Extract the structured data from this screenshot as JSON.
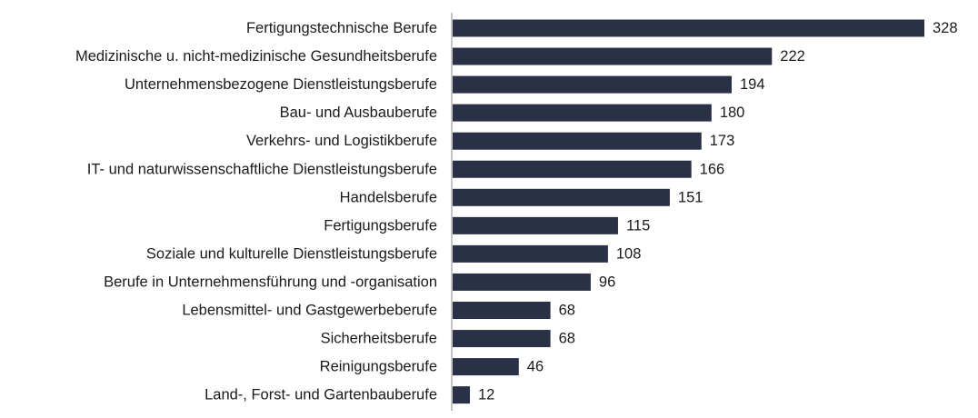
{
  "chart_data": {
    "type": "bar",
    "orientation": "horizontal",
    "title": "",
    "xlabel": "",
    "ylabel": "",
    "categories": [
      "Fertigungstechnische Berufe",
      "Medizinische u. nicht-medizinische Gesundheitsberufe",
      "Unternehmensbezogene Dienstleistungsberufe",
      "Bau- und Ausbauberufe",
      "Verkehrs- und Logistikberufe",
      "IT- und naturwissenschaftliche Dienstleistungsberufe",
      "Handelsberufe",
      "Fertigungsberufe",
      "Soziale und kulturelle Dienstleistungsberufe",
      "Berufe in Unternehmensführung und -organisation",
      "Lebensmittel- und Gastgewerbeberufe",
      "Sicherheitsberufe",
      "Reinigungsberufe",
      "Land-, Forst- und Gartenbauberufe"
    ],
    "values": [
      328,
      222,
      194,
      180,
      173,
      166,
      151,
      115,
      108,
      96,
      68,
      68,
      46,
      12
    ],
    "xlim": [
      0,
      328
    ],
    "grid": false,
    "legend": "none",
    "bar_color": "#2a3147"
  }
}
